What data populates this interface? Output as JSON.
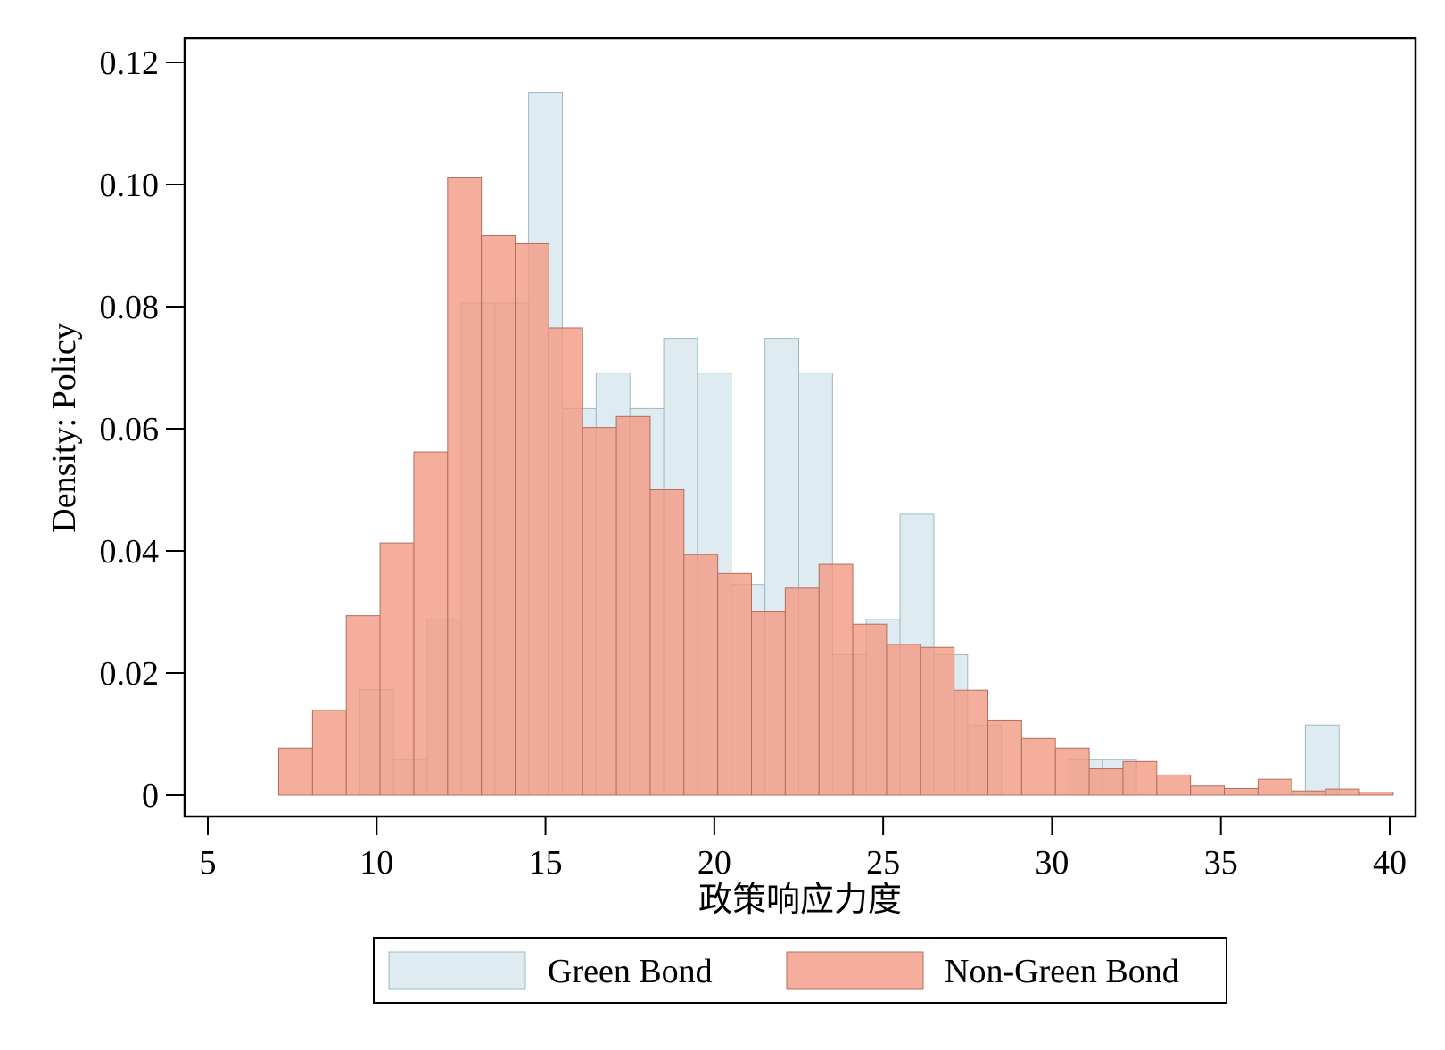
{
  "chart_data": {
    "type": "bar",
    "subtype": "overlapping-histogram",
    "title": "",
    "xlabel": "政策响应力度",
    "ylabel": "Density: Policy",
    "xlim": [
      5,
      40
    ],
    "ylim": [
      0,
      0.12
    ],
    "x_ticks": [
      5,
      10,
      15,
      20,
      25,
      30,
      35,
      40
    ],
    "y_ticks": [
      0,
      0.02,
      0.04,
      0.06,
      0.08,
      0.1,
      0.12
    ],
    "y_tick_labels": [
      "0",
      "0.02",
      "0.04",
      "0.06",
      "0.08",
      "0.10",
      "0.12"
    ],
    "grid": false,
    "legend_position": "bottom",
    "series": [
      {
        "name": "Green Bond",
        "color": "#d8e9f0",
        "edge_color": "#9fb8c2",
        "opacity": 0.85,
        "bin_width": 1.0,
        "bins": [
          {
            "x0": 9.5,
            "y": 0.0173
          },
          {
            "x0": 10.5,
            "y": 0.0058
          },
          {
            "x0": 11.5,
            "y": 0.0288
          },
          {
            "x0": 12.5,
            "y": 0.0806
          },
          {
            "x0": 13.5,
            "y": 0.0806
          },
          {
            "x0": 14.5,
            "y": 0.1151
          },
          {
            "x0": 15.5,
            "y": 0.0633
          },
          {
            "x0": 16.5,
            "y": 0.0691
          },
          {
            "x0": 17.5,
            "y": 0.0633
          },
          {
            "x0": 18.5,
            "y": 0.0748
          },
          {
            "x0": 19.5,
            "y": 0.0691
          },
          {
            "x0": 20.5,
            "y": 0.0345
          },
          {
            "x0": 21.5,
            "y": 0.0748
          },
          {
            "x0": 22.5,
            "y": 0.0691
          },
          {
            "x0": 23.5,
            "y": 0.023
          },
          {
            "x0": 24.5,
            "y": 0.0288
          },
          {
            "x0": 25.5,
            "y": 0.046
          },
          {
            "x0": 26.5,
            "y": 0.023
          },
          {
            "x0": 27.5,
            "y": 0.0115
          },
          {
            "x0": 30.5,
            "y": 0.0058
          },
          {
            "x0": 31.5,
            "y": 0.0058
          },
          {
            "x0": 37.5,
            "y": 0.0115
          }
        ]
      },
      {
        "name": "Non-Green Bond",
        "color": "#f29a82",
        "edge_color": "#b07060",
        "opacity": 0.8,
        "bin_width": 1.0,
        "bins": [
          {
            "x0": 7.1,
            "y": 0.0077
          },
          {
            "x0": 8.1,
            "y": 0.0139
          },
          {
            "x0": 9.1,
            "y": 0.0294
          },
          {
            "x0": 10.1,
            "y": 0.0413
          },
          {
            "x0": 11.1,
            "y": 0.0562
          },
          {
            "x0": 12.1,
            "y": 0.1011
          },
          {
            "x0": 13.1,
            "y": 0.0916
          },
          {
            "x0": 14.1,
            "y": 0.0903
          },
          {
            "x0": 15.1,
            "y": 0.0765
          },
          {
            "x0": 16.1,
            "y": 0.0602
          },
          {
            "x0": 17.1,
            "y": 0.062
          },
          {
            "x0": 18.1,
            "y": 0.05
          },
          {
            "x0": 19.1,
            "y": 0.0394
          },
          {
            "x0": 20.1,
            "y": 0.0363
          },
          {
            "x0": 21.1,
            "y": 0.03
          },
          {
            "x0": 22.1,
            "y": 0.0339
          },
          {
            "x0": 23.1,
            "y": 0.0378
          },
          {
            "x0": 24.1,
            "y": 0.028
          },
          {
            "x0": 25.1,
            "y": 0.0247
          },
          {
            "x0": 26.1,
            "y": 0.0242
          },
          {
            "x0": 27.1,
            "y": 0.0172
          },
          {
            "x0": 28.1,
            "y": 0.0122
          },
          {
            "x0": 29.1,
            "y": 0.0093
          },
          {
            "x0": 30.1,
            "y": 0.0077
          },
          {
            "x0": 31.1,
            "y": 0.0043
          },
          {
            "x0": 32.1,
            "y": 0.0055
          },
          {
            "x0": 33.1,
            "y": 0.0033
          },
          {
            "x0": 34.1,
            "y": 0.0015
          },
          {
            "x0": 35.1,
            "y": 0.0011
          },
          {
            "x0": 36.1,
            "y": 0.0026
          },
          {
            "x0": 37.1,
            "y": 0.0007
          },
          {
            "x0": 38.1,
            "y": 0.001
          },
          {
            "x0": 39.1,
            "y": 0.0005
          }
        ]
      }
    ]
  }
}
